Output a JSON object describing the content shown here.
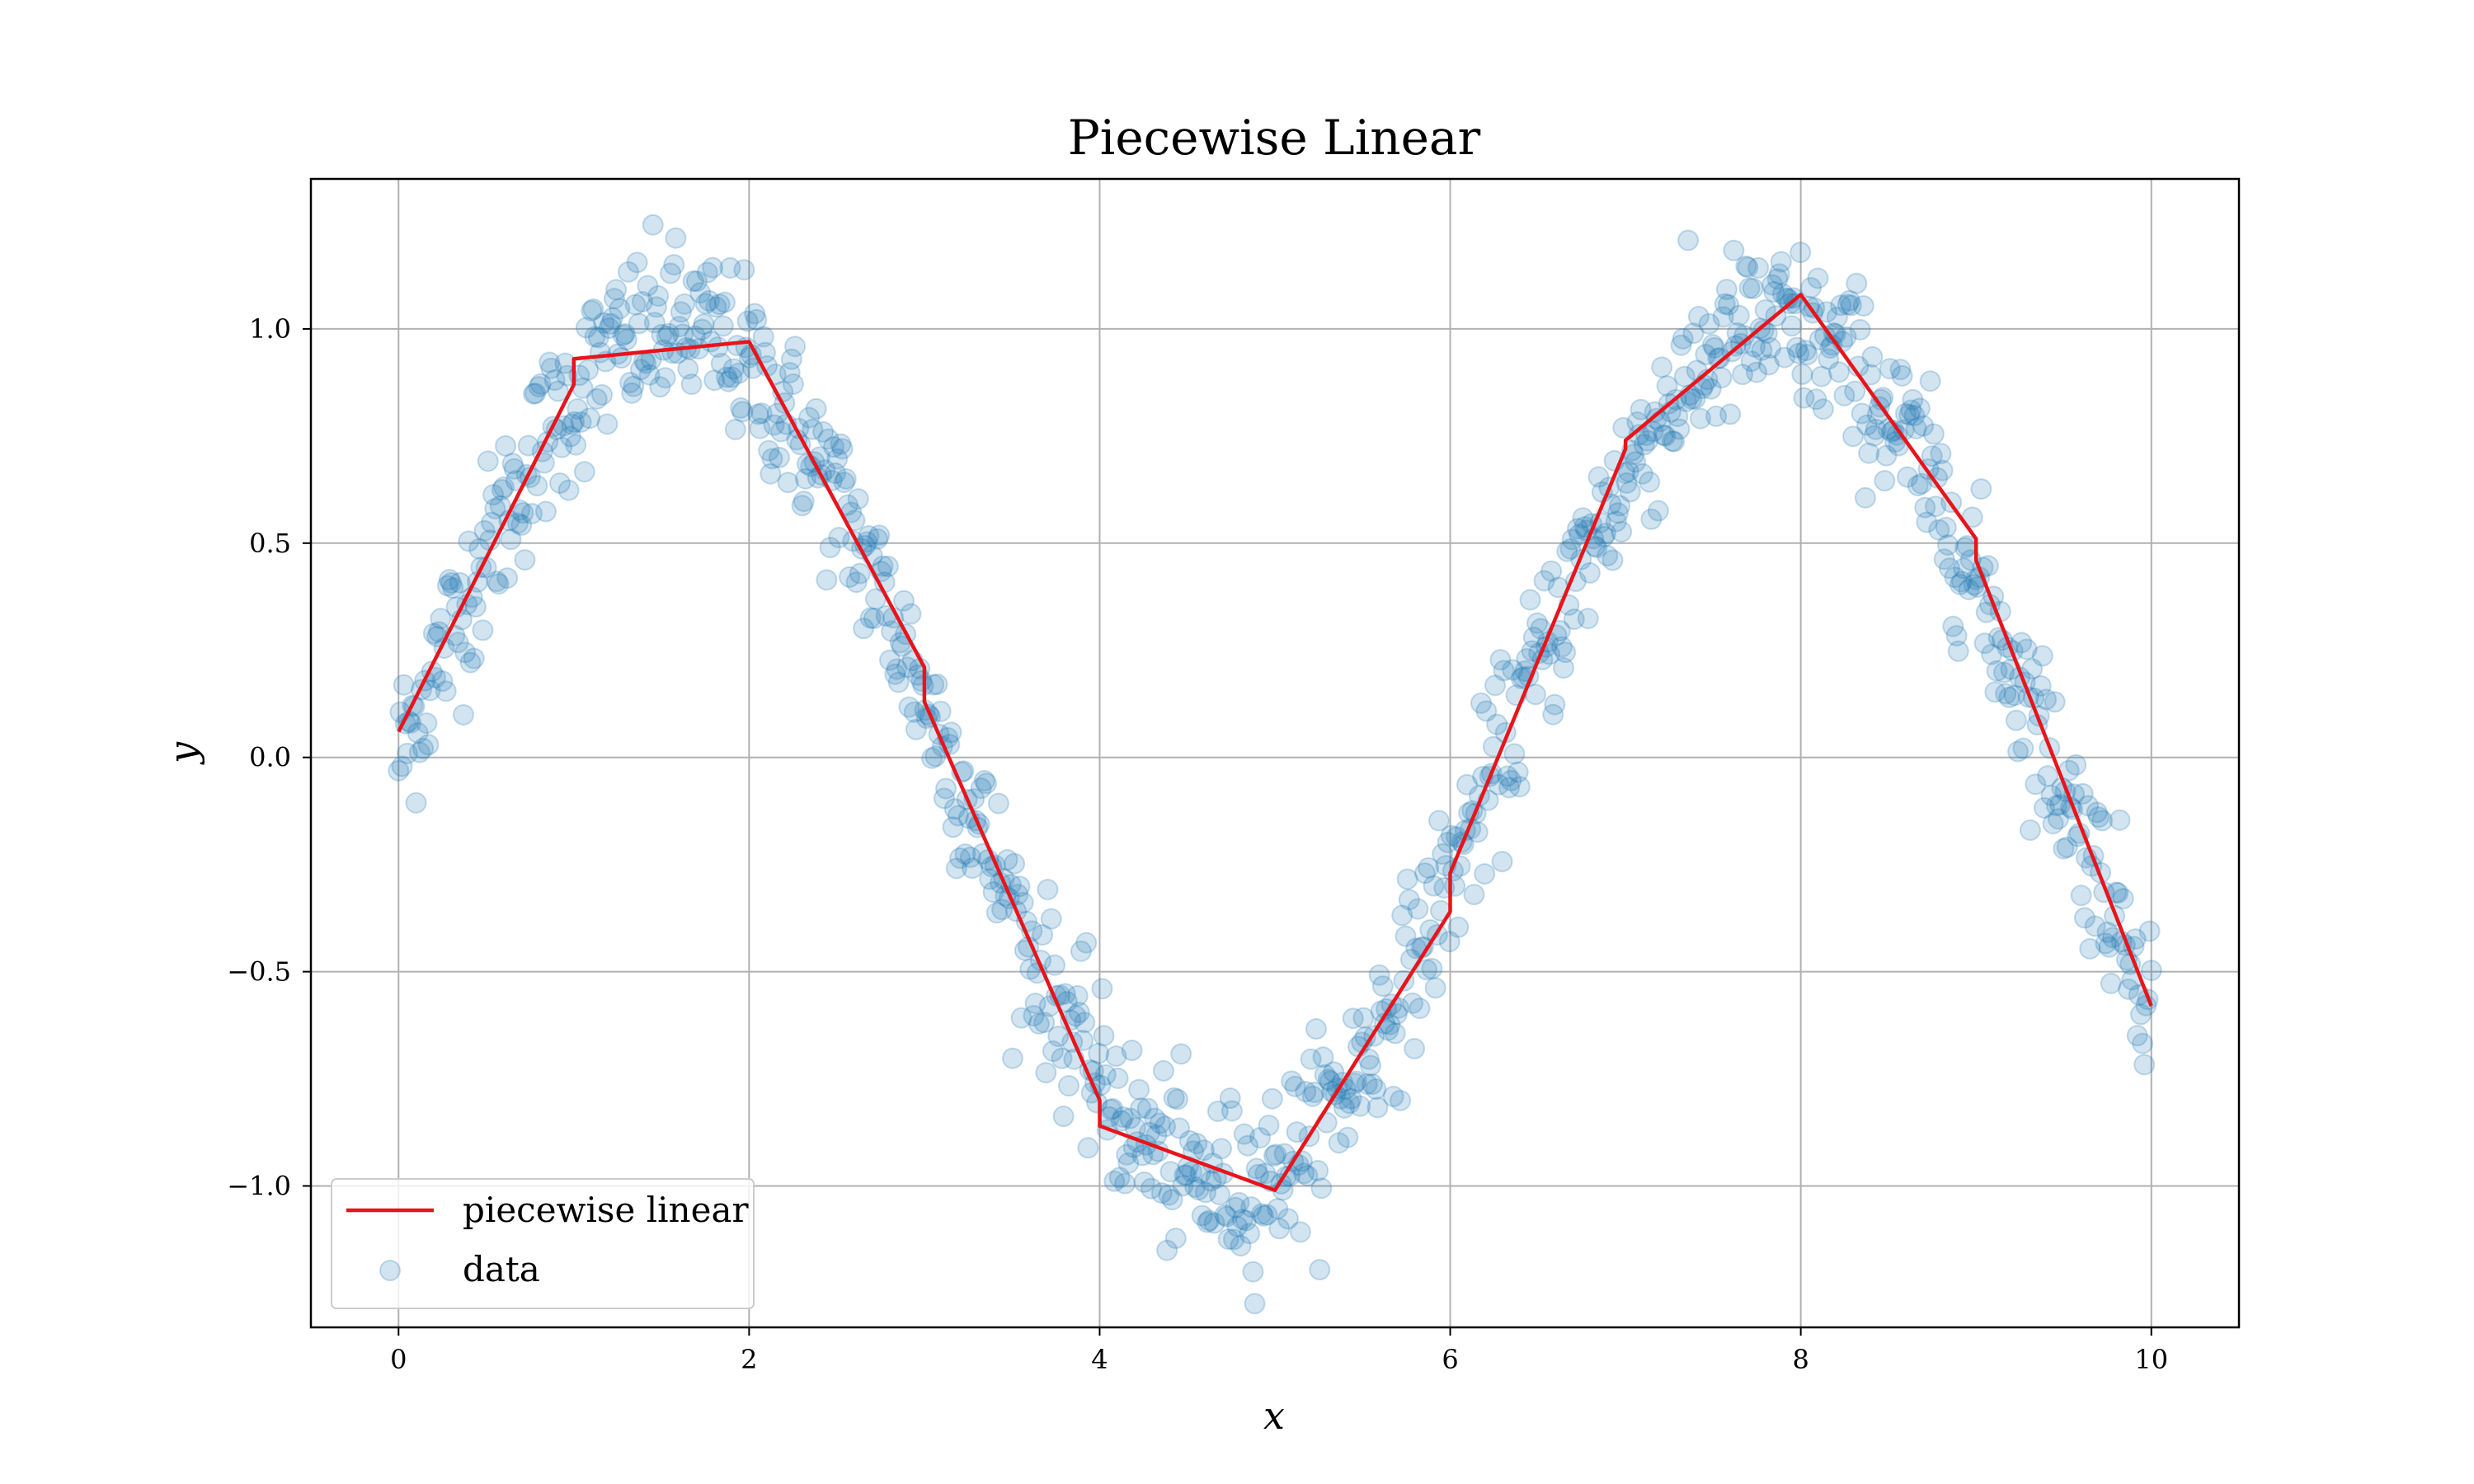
{
  "chart_data": {
    "type": "scatter",
    "title": "Piecewise Linear",
    "xlabel": "x",
    "ylabel": "y",
    "xlim": [
      -0.5,
      10.5
    ],
    "ylim": [
      -1.33,
      1.35
    ],
    "x_ticks": [
      0,
      2,
      4,
      6,
      8,
      10
    ],
    "x_tick_labels": [
      "0",
      "2",
      "4",
      "6",
      "8",
      "10"
    ],
    "y_ticks": [
      -1.0,
      -0.5,
      0.0,
      0.5,
      1.0
    ],
    "y_tick_labels": [
      "−1.0",
      "−0.5",
      "0.0",
      "0.5",
      "1.0"
    ],
    "grid": true,
    "legend_position": "lower-left",
    "series": [
      {
        "name": "piecewise linear",
        "kind": "line",
        "color": "#e8141a",
        "x": [
          0,
          1,
          1,
          2,
          3,
          3,
          4,
          4,
          5,
          6,
          6,
          7,
          7,
          8,
          9,
          9,
          10
        ],
        "y": [
          0.06,
          0.87,
          0.93,
          0.97,
          0.21,
          0.13,
          -0.8,
          -0.86,
          -1.01,
          -0.36,
          -0.27,
          0.72,
          0.74,
          1.08,
          0.51,
          0.46,
          -0.58
        ]
      },
      {
        "name": "data",
        "kind": "scatter",
        "color": "#1f77b4",
        "opacity": 0.2,
        "generator": "sin(x) + noise",
        "n_points": 1000,
        "x_range": [
          0,
          10
        ],
        "noise_std": 0.1
      }
    ]
  }
}
